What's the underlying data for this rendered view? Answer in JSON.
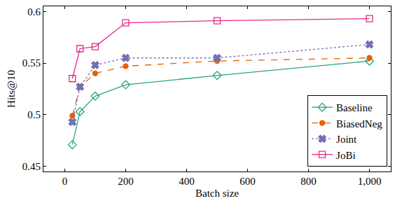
{
  "chart_data": {
    "type": "line",
    "x_label": "Batch size",
    "y_label": "Hits@10",
    "x": [
      25,
      50,
      100,
      200,
      500,
      1000
    ],
    "series": [
      {
        "name": "Baseline",
        "color": "#2ca089",
        "marker": "diamond-open",
        "line_style": "solid",
        "values": [
          0.471,
          0.503,
          0.518,
          0.529,
          0.538,
          0.552
        ]
      },
      {
        "name": "BiasedNeg",
        "color": "#e66100",
        "marker": "circle",
        "line_style": "dashed",
        "values": [
          0.499,
          0.527,
          0.54,
          0.547,
          0.552,
          0.555
        ]
      },
      {
        "name": "Joint",
        "color": "#7570b3",
        "marker": "x",
        "line_style": "dotted",
        "values": [
          0.493,
          0.527,
          0.548,
          0.555,
          0.555,
          0.568
        ]
      },
      {
        "name": "JoBi",
        "color": "#e7298a",
        "marker": "square-open",
        "line_style": "solid",
        "values": [
          0.535,
          0.564,
          0.566,
          0.589,
          0.591,
          0.593
        ]
      }
    ],
    "xlim": [
      -70,
      1070
    ],
    "xticks": [
      0,
      200,
      400,
      600,
      800,
      {
        "value": 1000,
        "label": "1,000"
      }
    ],
    "ylim": [
      0.445,
      0.605
    ],
    "yticks": [
      0.45,
      0.5,
      0.55,
      0.6
    ],
    "grid": false,
    "legend": "bottom-right"
  }
}
